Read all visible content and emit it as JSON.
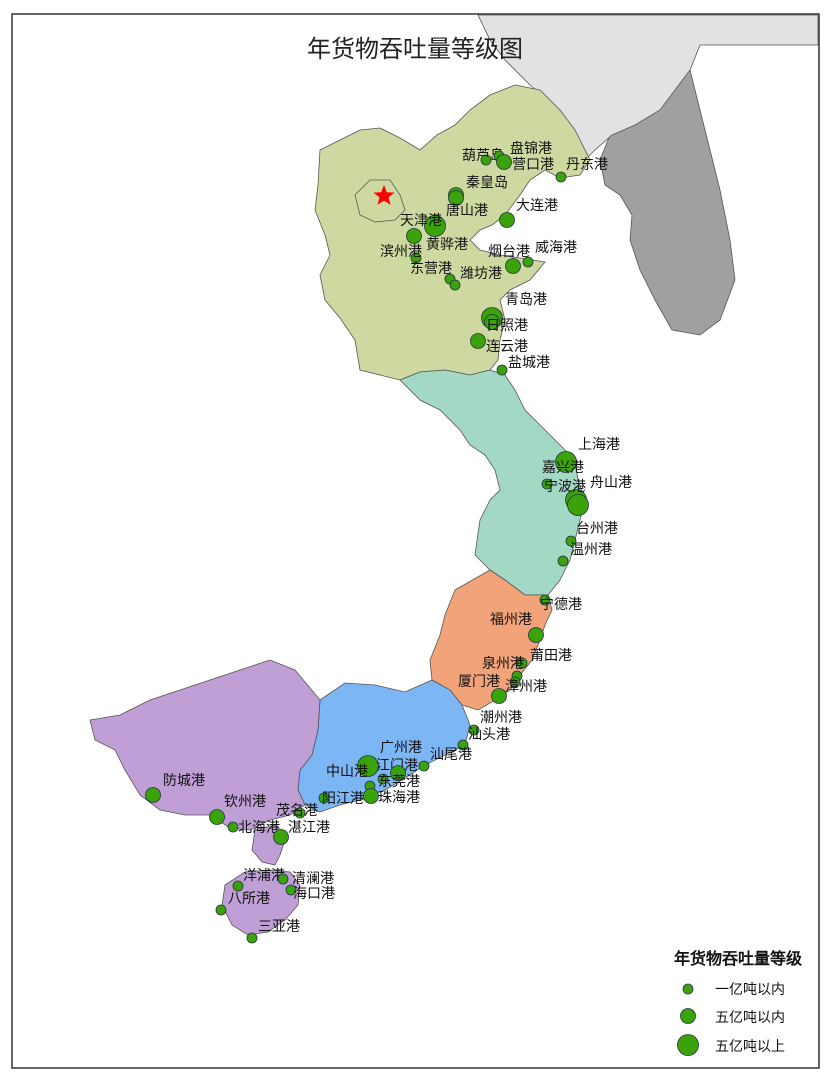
{
  "title": "年货物吞吐量等级图",
  "colors": {
    "north": "#cdd9a1",
    "east": "#a3d9c4",
    "fujian": "#f2a37a",
    "guangdong": "#7db6f5",
    "guangxi": "#c09ed6",
    "korea": "#a0a0a0",
    "dprk": "#e2e2e2",
    "port": "#3aa30a",
    "star": "#ff0000",
    "border": "#555555"
  },
  "legend": {
    "title": "年货物吞吐量等级",
    "items": [
      {
        "label": "一亿吨以内",
        "level": 1
      },
      {
        "label": "五亿吨以内",
        "level": 2
      },
      {
        "label": "五亿吨以上",
        "level": 3
      }
    ]
  },
  "ports": [
    {
      "name": "葫芦岛",
      "level": 1
    },
    {
      "name": "盘锦港",
      "level": 1
    },
    {
      "name": "营口港",
      "level": 2
    },
    {
      "name": "丹东港",
      "level": 1
    },
    {
      "name": "秦皇岛",
      "level": 2
    },
    {
      "name": "唐山港",
      "level": 2
    },
    {
      "name": "大连港",
      "level": 2
    },
    {
      "name": "天津港",
      "level": 3
    },
    {
      "name": "黄骅港",
      "level": 2
    },
    {
      "name": "滨州港",
      "level": 1
    },
    {
      "name": "烟台港",
      "level": 2
    },
    {
      "name": "威海港",
      "level": 1
    },
    {
      "name": "东营港",
      "level": 1
    },
    {
      "name": "潍坊港",
      "level": 1
    },
    {
      "name": "青岛港",
      "level": 3
    },
    {
      "name": "日照港",
      "level": 2
    },
    {
      "name": "连云港",
      "level": 2
    },
    {
      "name": "盐城港",
      "level": 1
    },
    {
      "name": "上海港",
      "level": 3
    },
    {
      "name": "嘉兴港",
      "level": 1
    },
    {
      "name": "宁波港",
      "level": 3
    },
    {
      "name": "舟山港",
      "level": 3
    },
    {
      "name": "台州港",
      "level": 1
    },
    {
      "name": "温州港",
      "level": 1
    },
    {
      "name": "宁德港",
      "level": 1
    },
    {
      "name": "福州港",
      "level": 2
    },
    {
      "name": "莆田港",
      "level": 1
    },
    {
      "name": "泉州港",
      "level": 1
    },
    {
      "name": "厦门港",
      "level": 2
    },
    {
      "name": "漳州港",
      "level": 1
    },
    {
      "name": "潮州港",
      "level": 1
    },
    {
      "name": "汕头港",
      "level": 1
    },
    {
      "name": "汕尾港",
      "level": 1
    },
    {
      "name": "广州港",
      "level": 3
    },
    {
      "name": "中山港",
      "level": 1
    },
    {
      "name": "江门港",
      "level": 1
    },
    {
      "name": "东莞港",
      "level": 2
    },
    {
      "name": "珠海港",
      "level": 2
    },
    {
      "name": "阳江港",
      "level": 1
    },
    {
      "name": "防城港",
      "level": 2
    },
    {
      "name": "钦州港",
      "level": 2
    },
    {
      "name": "北海港",
      "level": 1
    },
    {
      "name": "茂名港",
      "level": 1
    },
    {
      "name": "湛江港",
      "level": 2
    },
    {
      "name": "洋浦港",
      "level": 1
    },
    {
      "name": "清澜港",
      "level": 1
    },
    {
      "name": "海口港",
      "level": 1
    },
    {
      "name": "八所港",
      "level": 1
    },
    {
      "name": "三亚港",
      "level": 1
    }
  ]
}
